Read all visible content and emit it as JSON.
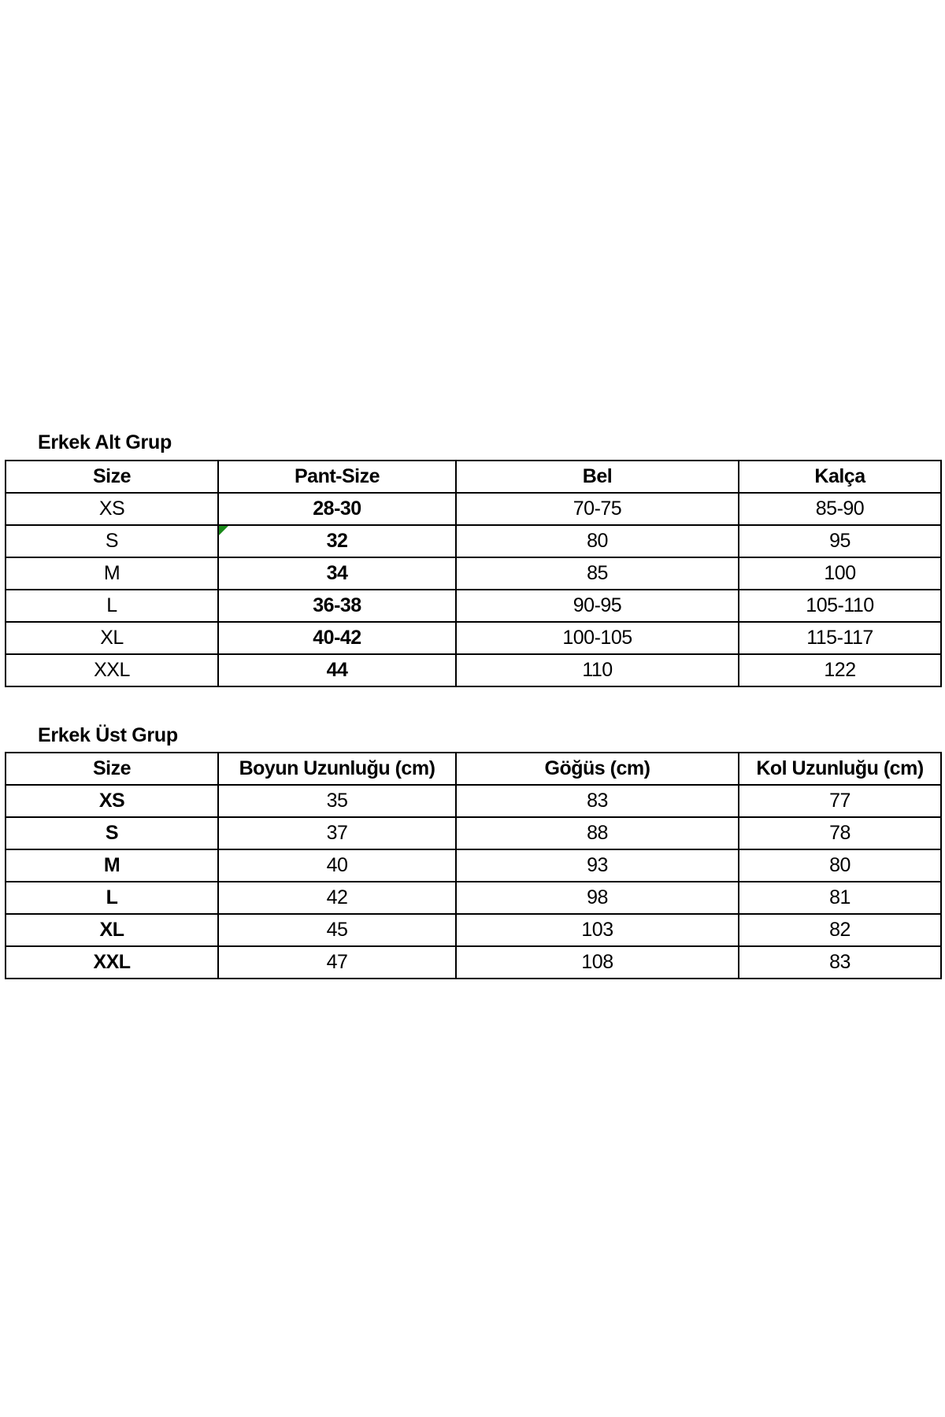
{
  "lower": {
    "title": "Erkek Alt Grup",
    "headers": [
      "Size",
      "Pant-Size",
      "Bel",
      "Kalça"
    ],
    "rows": [
      [
        "XS",
        "28-30",
        "70-75",
        "85-90"
      ],
      [
        "S",
        "32",
        "80",
        "95"
      ],
      [
        "M",
        "34",
        "85",
        "100"
      ],
      [
        "L",
        "36-38",
        "90-95",
        "105-110"
      ],
      [
        "XL",
        "40-42",
        "100-105",
        "115-117"
      ],
      [
        "XXL",
        "44",
        "110",
        "122"
      ]
    ]
  },
  "upper": {
    "title": "Erkek Üst Grup",
    "headers": [
      "Size",
      "Boyun Uzunluğu (cm)",
      "Göğüs (cm)",
      "Kol Uzunluğu (cm)"
    ],
    "rows": [
      [
        "XS",
        "35",
        "83",
        "77"
      ],
      [
        "S",
        "37",
        "88",
        "78"
      ],
      [
        "M",
        "40",
        "93",
        "80"
      ],
      [
        "L",
        "42",
        "98",
        "81"
      ],
      [
        "XL",
        "45",
        "103",
        "82"
      ],
      [
        "XXL",
        "47",
        "108",
        "83"
      ]
    ]
  },
  "colors": {
    "comment_marker": "#1a8a1a"
  }
}
